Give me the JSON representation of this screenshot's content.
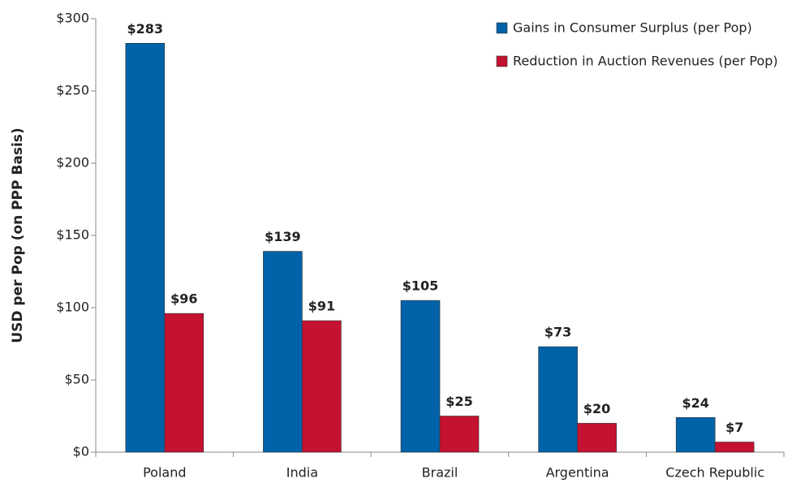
{
  "chart_data": {
    "type": "bar",
    "y_label": "USD per Pop (on PPP Basis)",
    "categories": [
      "Poland",
      "India",
      "Brazil",
      "Argentina",
      "Czech Republic"
    ],
    "series": [
      {
        "name": "Gains in Consumer Surplus (per Pop)",
        "color": "#0062a8",
        "values": [
          283,
          139,
          105,
          73,
          24
        ],
        "value_labels": [
          "$283",
          "$139",
          "$105",
          "$73",
          "$24"
        ]
      },
      {
        "name": "Reduction in Auction Revenues (per Pop)",
        "color": "#c41230",
        "values": [
          96,
          91,
          25,
          20,
          7
        ],
        "value_labels": [
          "$96",
          "$91",
          "$25",
          "$20",
          "$7"
        ]
      }
    ],
    "ylim": [
      0,
      300
    ],
    "yticks": [
      {
        "value": 0,
        "label": "$0"
      },
      {
        "value": 50,
        "label": "$50"
      },
      {
        "value": 100,
        "label": "$100"
      },
      {
        "value": 150,
        "label": "$150"
      },
      {
        "value": 200,
        "label": "$200"
      },
      {
        "value": 250,
        "label": "$250"
      },
      {
        "value": 300,
        "label": "$300"
      }
    ],
    "legend": "top-right",
    "grid": false
  }
}
